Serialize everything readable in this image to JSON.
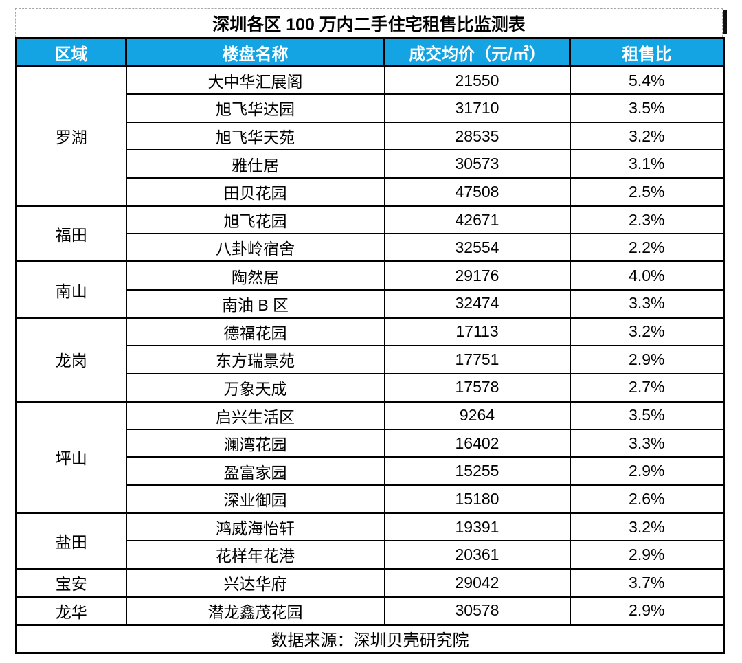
{
  "colors": {
    "header_bg": "#15A4E3",
    "header_text": "#FFFFFF",
    "border": "#000000",
    "title_dashed_border": "#A6A6A6"
  },
  "chart_data": {
    "type": "table",
    "title": "深圳各区 100 万内二手住宅租售比监测表",
    "columns": [
      "区域",
      "楼盘名称",
      "成交均价（元/㎡）",
      "租售比"
    ],
    "groups": [
      {
        "region": "罗湖",
        "rows": [
          {
            "name": "大中华汇展阁",
            "price": 21550,
            "ratio": "5.4%"
          },
          {
            "name": "旭飞华达园",
            "price": 31710,
            "ratio": "3.5%"
          },
          {
            "name": "旭飞华天苑",
            "price": 28535,
            "ratio": "3.2%"
          },
          {
            "name": "雅仕居",
            "price": 30573,
            "ratio": "3.1%"
          },
          {
            "name": "田贝花园",
            "price": 47508,
            "ratio": "2.5%"
          }
        ]
      },
      {
        "region": "福田",
        "rows": [
          {
            "name": "旭飞花园",
            "price": 42671,
            "ratio": "2.3%"
          },
          {
            "name": "八卦岭宿舍",
            "price": 32554,
            "ratio": "2.2%"
          }
        ]
      },
      {
        "region": "南山",
        "rows": [
          {
            "name": "陶然居",
            "price": 29176,
            "ratio": "4.0%"
          },
          {
            "name": "南油 B 区",
            "price": 32474,
            "ratio": "3.3%"
          }
        ]
      },
      {
        "region": "龙岗",
        "rows": [
          {
            "name": "德福花园",
            "price": 17113,
            "ratio": "3.2%"
          },
          {
            "name": "东方瑞景苑",
            "price": 17751,
            "ratio": "2.9%"
          },
          {
            "name": "万象天成",
            "price": 17578,
            "ratio": "2.7%"
          }
        ]
      },
      {
        "region": "坪山",
        "rows": [
          {
            "name": "启兴生活区",
            "price": 9264,
            "ratio": "3.5%"
          },
          {
            "name": "澜湾花园",
            "price": 16402,
            "ratio": "3.3%"
          },
          {
            "name": "盈富家园",
            "price": 15255,
            "ratio": "2.9%"
          },
          {
            "name": "深业御园",
            "price": 15180,
            "ratio": "2.6%"
          }
        ]
      },
      {
        "region": "盐田",
        "rows": [
          {
            "name": "鸿威海怡轩",
            "price": 19391,
            "ratio": "3.2%"
          },
          {
            "name": "花样年花港",
            "price": 20361,
            "ratio": "2.9%"
          }
        ]
      },
      {
        "region": "宝安",
        "rows": [
          {
            "name": "兴达华府",
            "price": 29042,
            "ratio": "3.7%"
          }
        ]
      },
      {
        "region": "龙华",
        "rows": [
          {
            "name": "潜龙鑫茂花园",
            "price": 30578,
            "ratio": "2.9%"
          }
        ]
      }
    ],
    "footer": "数据来源：深圳贝壳研究院"
  }
}
